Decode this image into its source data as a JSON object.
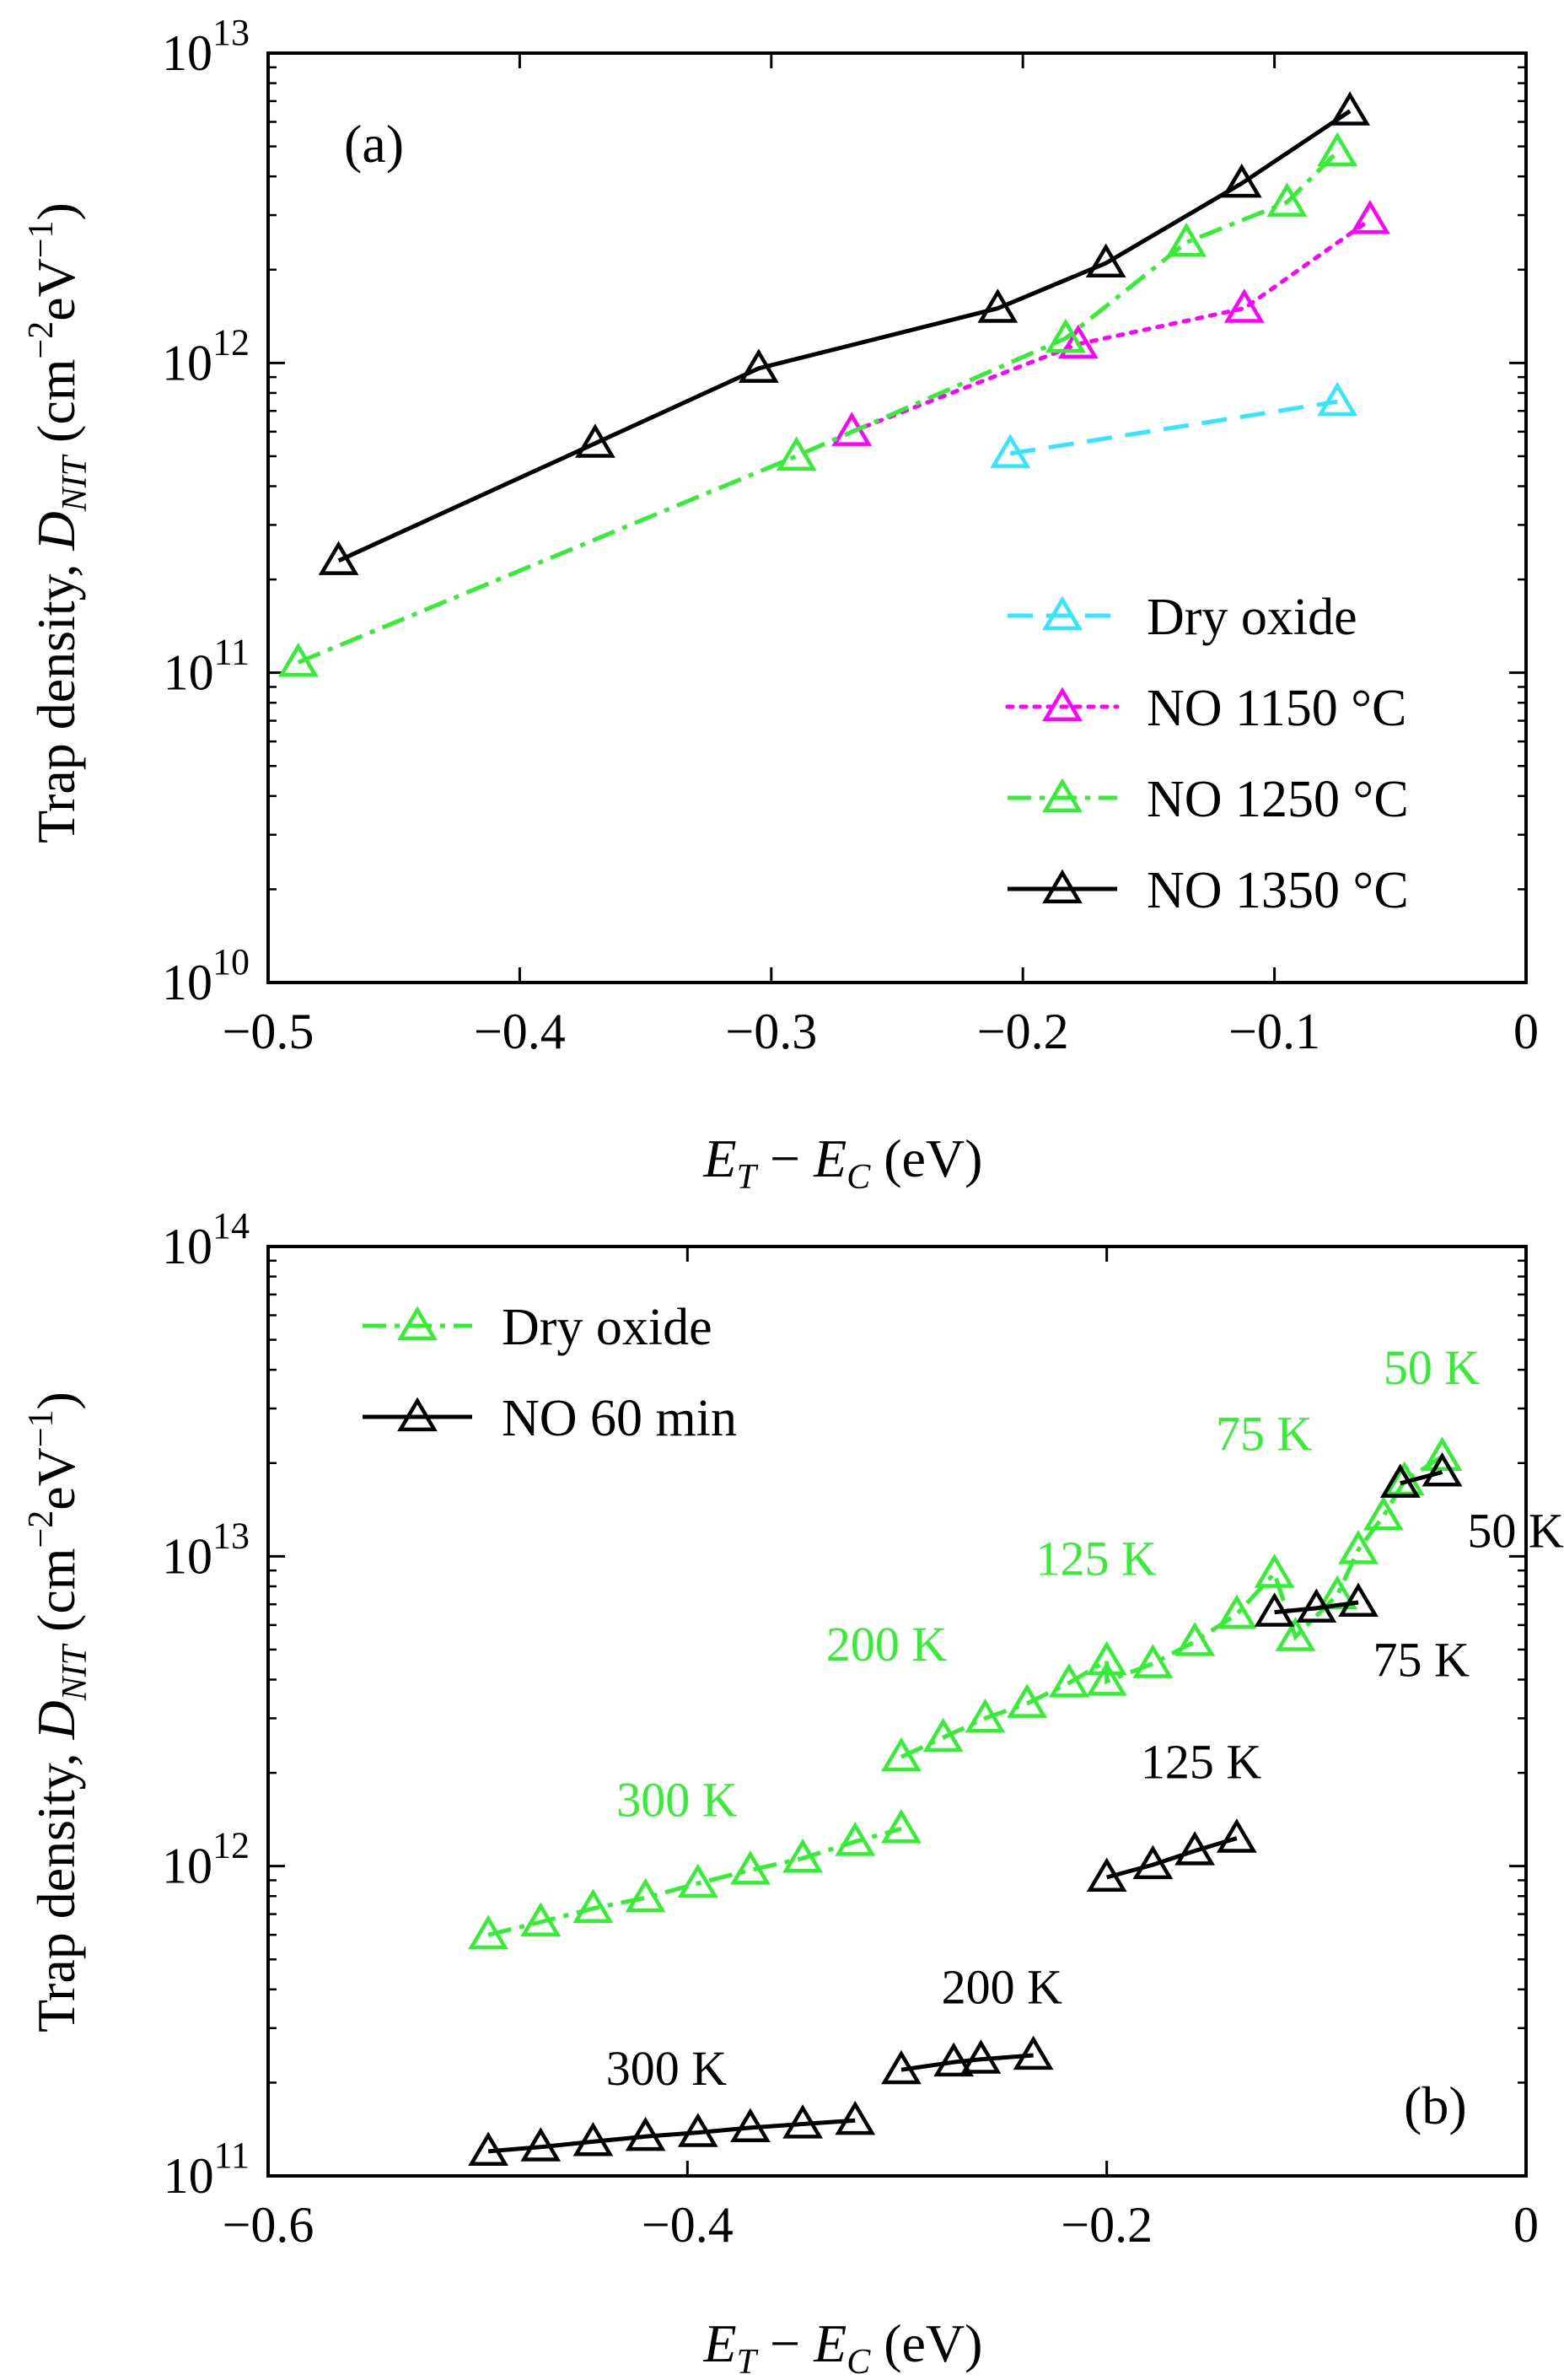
{
  "chart_data": [
    {
      "type": "line",
      "panel": "(a)",
      "xlabel": {
        "main1": "E",
        "sub1": "T",
        "mid": " − ",
        "main2": "E",
        "sub2": "C",
        "unit": " (eV)"
      },
      "ylabel": {
        "pre": "Trap density, ",
        "sym": "D",
        "sub": "NIT",
        "post1": " (cm",
        "exp1": "−2",
        "post2": "eV",
        "exp2": "−1",
        "post3": ")"
      },
      "xlim": [
        -0.5,
        0
      ],
      "ylim_log10": [
        10,
        13
      ],
      "xticks": [
        {
          "v": -0.5,
          "label": "−0.5"
        },
        {
          "v": -0.4,
          "label": "−0.4"
        },
        {
          "v": -0.3,
          "label": "−0.3"
        },
        {
          "v": -0.2,
          "label": "−0.2"
        },
        {
          "v": -0.1,
          "label": "−0.1"
        },
        {
          "v": 0,
          "label": "0"
        }
      ],
      "yticks": [
        {
          "e": 10,
          "base": "10",
          "exp": "10"
        },
        {
          "e": 11,
          "base": "10",
          "exp": "11"
        },
        {
          "e": 12,
          "base": "10",
          "exp": "12"
        },
        {
          "e": 13,
          "base": "10",
          "exp": "13"
        }
      ],
      "legend": "right",
      "series": [
        {
          "name": "Dry oxide",
          "color": "#33e6ff",
          "dash": "dashed",
          "points": [
            [
              -0.205,
              510000000000.0
            ],
            [
              -0.075,
              750000000000.0
            ]
          ]
        },
        {
          "name": "NO 1150 °C",
          "color": "#ff00ff",
          "dash": "dotted",
          "points": [
            [
              -0.268,
              600000000000.0
            ],
            [
              -0.178,
              1150000000000.0
            ],
            [
              -0.112,
              1500000000000.0
            ],
            [
              -0.062,
              2900000000000.0
            ]
          ]
        },
        {
          "name": "NO 1250 °C",
          "color": "#33ee33",
          "dash": "dashdot",
          "points": [
            [
              -0.488,
              108000000000.0
            ],
            [
              -0.29,
              500000000000.0
            ],
            [
              -0.183,
              1200000000000.0
            ],
            [
              -0.135,
              2450000000000.0
            ],
            [
              -0.095,
              3300000000000.0
            ],
            [
              -0.075,
              4800000000000.0
            ]
          ]
        },
        {
          "name": "NO 1350 °C",
          "color": "#000000",
          "dash": "solid",
          "points": [
            [
              -0.472,
              230000000000.0
            ],
            [
              -0.37,
              550000000000.0
            ],
            [
              -0.305,
              960000000000.0
            ],
            [
              -0.21,
              1500000000000.0
            ],
            [
              -0.167,
              2100000000000.0
            ],
            [
              -0.113,
              3800000000000.0
            ],
            [
              -0.07,
              6500000000000.0
            ]
          ]
        }
      ],
      "annotations": []
    },
    {
      "type": "line",
      "panel": "(b)",
      "xlabel": {
        "main1": "E",
        "sub1": "T",
        "mid": " − ",
        "main2": "E",
        "sub2": "C",
        "unit": " (eV)"
      },
      "ylabel": {
        "pre": "Trap density, ",
        "sym": "D",
        "sub": "NIT",
        "post1": " (cm",
        "exp1": "−2",
        "post2": "eV",
        "exp2": "−1",
        "post3": ")"
      },
      "xlim": [
        -0.6,
        0
      ],
      "ylim_log10": [
        11,
        14
      ],
      "xticks": [
        {
          "v": -0.6,
          "label": "−0.6"
        },
        {
          "v": -0.4,
          "label": "−0.4"
        },
        {
          "v": -0.2,
          "label": "−0.2"
        },
        {
          "v": 0,
          "label": "0"
        }
      ],
      "yticks": [
        {
          "e": 11,
          "base": "10",
          "exp": "11"
        },
        {
          "e": 12,
          "base": "10",
          "exp": "12"
        },
        {
          "e": 13,
          "base": "10",
          "exp": "13"
        },
        {
          "e": 14,
          "base": "10",
          "exp": "14"
        }
      ],
      "legend": "top-left",
      "series": [
        {
          "name": "Dry oxide",
          "color": "#33ee33",
          "dash": "dashdot",
          "segments": [
            [
              [
                -0.495,
                600000000000.0
              ],
              [
                -0.47,
                660000000000.0
              ],
              [
                -0.445,
                730000000000.0
              ],
              [
                -0.42,
                790000000000.0
              ],
              [
                -0.395,
                880000000000.0
              ],
              [
                -0.37,
                970000000000.0
              ],
              [
                -0.345,
                1060000000000.0
              ],
              [
                -0.32,
                1200000000000.0
              ],
              [
                -0.298,
                1320000000000.0
              ]
            ],
            [
              [
                -0.298,
                2250000000000.0
              ],
              [
                -0.278,
                2600000000000.0
              ],
              [
                -0.258,
                3000000000000.0
              ],
              [
                -0.238,
                3350000000000.0
              ],
              [
                -0.218,
                3900000000000.0
              ],
              [
                -0.2,
                4600000000000.0
              ],
              [
                -0.2,
                3950000000000.0
              ],
              [
                -0.178,
                4500000000000.0
              ],
              [
                -0.158,
                5300000000000.0
              ],
              [
                -0.138,
                6500000000000.0
              ],
              [
                -0.12,
                8800000000000.0
              ],
              [
                -0.11,
                5500000000000.0
              ],
              [
                -0.09,
                7500000000000.0
              ],
              [
                -0.08,
                10500000000000.0
              ],
              [
                -0.068,
                13500000000000.0
              ],
              [
                -0.058,
                17500000000000.0
              ],
              [
                -0.04,
                21000000000000.0
              ]
            ]
          ]
        },
        {
          "name": "NO 60 min",
          "color": "#000000",
          "dash": "solid",
          "segments": [
            [
              [
                -0.495,
                120000000000.0
              ],
              [
                -0.47,
                124000000000.0
              ],
              [
                -0.445,
                129000000000.0
              ],
              [
                -0.42,
                134000000000.0
              ],
              [
                -0.395,
                138000000000.0
              ],
              [
                -0.37,
                143000000000.0
              ],
              [
                -0.345,
                147000000000.0
              ],
              [
                -0.32,
                151000000000.0
              ]
            ],
            [
              [
                -0.298,
                220000000000.0
              ],
              [
                -0.273,
                233000000000.0
              ],
              [
                -0.26,
                238000000000.0
              ],
              [
                -0.235,
                245000000000.0
              ]
            ],
            [
              [
                -0.2,
                920000000000.0
              ],
              [
                -0.178,
                1010000000000.0
              ],
              [
                -0.158,
                1120000000000.0
              ],
              [
                -0.138,
                1230000000000.0
              ]
            ],
            [
              [
                -0.12,
                6600000000000.0
              ],
              [
                -0.1,
                6800000000000.0
              ],
              [
                -0.08,
                7100000000000.0
              ]
            ],
            [
              [
                -0.06,
                17200000000000.0
              ],
              [
                -0.04,
                18700000000000.0
              ]
            ]
          ]
        }
      ],
      "annotations": [
        {
          "text": "300 K",
          "color": "#33ee33",
          "x": -0.405,
          "y": 1450000000000.0
        },
        {
          "text": "200 K",
          "color": "#33ee33",
          "x": -0.305,
          "y": 4600000000000.0
        },
        {
          "text": "125 K",
          "color": "#33ee33",
          "x": -0.205,
          "y": 8700000000000.0
        },
        {
          "text": "75 K",
          "color": "#33ee33",
          "x": -0.125,
          "y": 22000000000000.0
        },
        {
          "text": "50 K",
          "color": "#33ee33",
          "x": -0.045,
          "y": 36000000000000.0
        },
        {
          "text": "50 K",
          "color": "#000000",
          "x": -0.005,
          "y": 10700000000000.0
        },
        {
          "text": "75 K",
          "color": "#000000",
          "x": -0.05,
          "y": 4100000000000.0
        },
        {
          "text": "125 K",
          "color": "#000000",
          "x": -0.155,
          "y": 1920000000000.0
        },
        {
          "text": "200 K",
          "color": "#000000",
          "x": -0.25,
          "y": 360000000000.0
        },
        {
          "text": "300 K",
          "color": "#000000",
          "x": -0.41,
          "y": 197000000000.0
        }
      ]
    }
  ]
}
